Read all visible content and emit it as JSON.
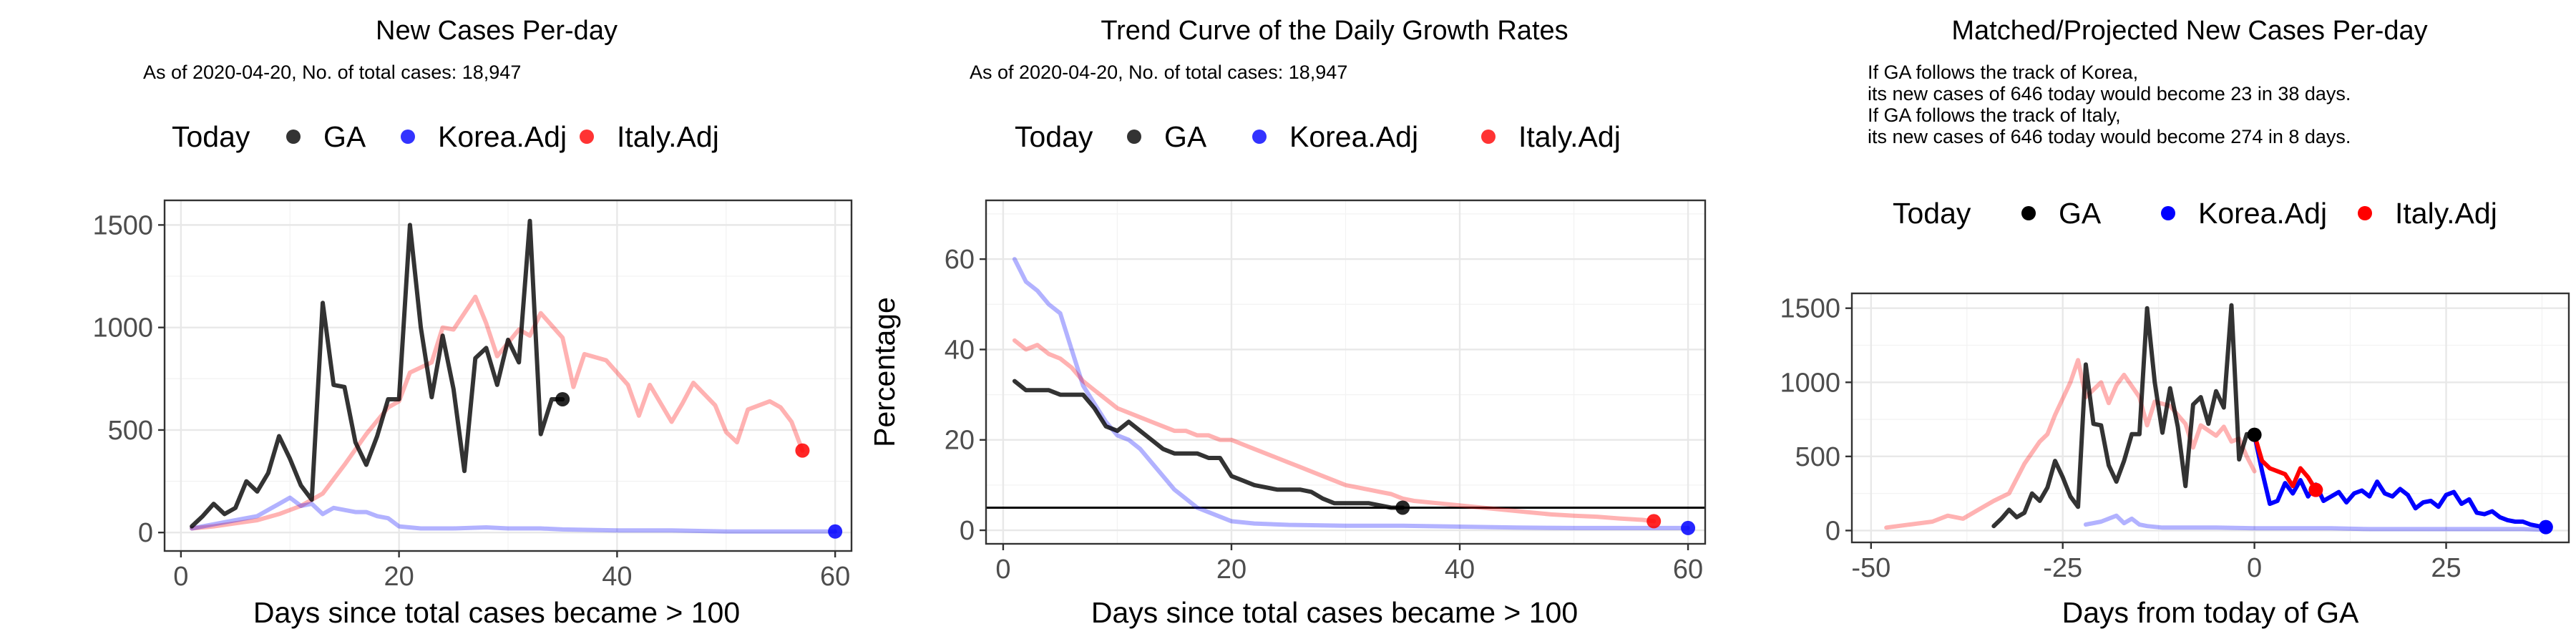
{
  "chart_data": [
    {
      "type": "line",
      "title": "New Cases Per-day",
      "subtitle": "As of 2020-04-20, No. of total cases: 18,947",
      "notes": [],
      "xlabel": "Days since total cases became > 100",
      "ylabel": "",
      "xlim": [
        -1.5,
        61.5
      ],
      "ylim": [
        -90,
        1620
      ],
      "xticks": [
        0,
        20,
        40,
        60
      ],
      "yticks": [
        0,
        500,
        1000,
        1500
      ],
      "grid": true,
      "legend_placement": "top",
      "legend": {
        "title": "Today",
        "entries": [
          "GA",
          "Korea.Adj",
          "Italy.Adj"
        ]
      },
      "series": [
        {
          "name": "Italy.Adj",
          "color": "#ff0000",
          "alpha": 0.3,
          "x": [
            1,
            3,
            5,
            7,
            9,
            11,
            13,
            15,
            17,
            19,
            20,
            21,
            23,
            24,
            25,
            27,
            28,
            29,
            31,
            32,
            33,
            35,
            36,
            37,
            39,
            41,
            42,
            43,
            45,
            46,
            47,
            49,
            50,
            51,
            52,
            54,
            55,
            56,
            57
          ],
          "y": [
            20,
            30,
            45,
            60,
            90,
            130,
            190,
            330,
            480,
            610,
            640,
            780,
            830,
            1000,
            990,
            1150,
            1020,
            860,
            990,
            960,
            1070,
            950,
            710,
            870,
            840,
            720,
            570,
            720,
            540,
            630,
            730,
            620,
            490,
            440,
            600,
            640,
            610,
            540,
            400
          ]
        },
        {
          "name": "Korea.Adj",
          "color": "#0000ff",
          "alpha": 0.3,
          "x": [
            1,
            3,
            5,
            7,
            9,
            10,
            11,
            12,
            13,
            14,
            15,
            16,
            17,
            18,
            19,
            20,
            22,
            25,
            28,
            30,
            33,
            35,
            40,
            45,
            50,
            55,
            60
          ],
          "y": [
            20,
            40,
            60,
            80,
            140,
            170,
            130,
            140,
            90,
            120,
            110,
            100,
            100,
            80,
            70,
            30,
            20,
            20,
            25,
            20,
            20,
            15,
            10,
            10,
            5,
            5,
            5
          ],
          "today": {
            "x": 60,
            "y": 5
          }
        },
        {
          "name": "GA",
          "color": "#000000",
          "alpha": 0.8,
          "x": [
            1,
            2,
            3,
            4,
            5,
            6,
            7,
            8,
            9,
            10,
            11,
            12,
            13,
            14,
            15,
            16,
            17,
            18,
            19,
            20,
            21,
            22,
            23,
            24,
            25,
            26,
            27,
            28,
            29,
            30,
            31,
            32,
            33,
            34,
            35
          ],
          "y": [
            30,
            80,
            140,
            90,
            120,
            250,
            200,
            290,
            470,
            360,
            230,
            160,
            1120,
            720,
            710,
            440,
            330,
            470,
            650,
            650,
            1500,
            1000,
            660,
            960,
            700,
            300,
            850,
            900,
            720,
            940,
            830,
            1520,
            480,
            650,
            650
          ],
          "today": {
            "x": 35,
            "y": 650
          }
        },
        {
          "name": "Italy.Adj",
          "color": "#ff0000",
          "alpha": 1,
          "x": [],
          "y": [],
          "today": {
            "x": 57,
            "y": 400
          }
        }
      ]
    },
    {
      "type": "line",
      "title": "Trend Curve of the Daily Growth Rates",
      "subtitle": "As of 2020-04-20, No. of total cases: 18,947",
      "notes": [],
      "xlabel": "Days since total cases became > 100",
      "ylabel": "Percentage",
      "xlim": [
        -1.5,
        61.5
      ],
      "ylim": [
        -3,
        73
      ],
      "xticks": [
        0,
        20,
        40,
        60
      ],
      "yticks": [
        0,
        20,
        40,
        60
      ],
      "hline": 5,
      "grid": true,
      "legend_placement": "top",
      "legend": {
        "title": "Today",
        "entries": [
          "GA",
          "Korea.Adj",
          "Italy.Adj"
        ]
      },
      "series": [
        {
          "name": "Korea.Adj",
          "color": "#0000ff",
          "alpha": 0.3,
          "x": [
            1,
            2,
            3,
            4,
            5,
            6,
            7,
            8,
            9,
            10,
            11,
            12,
            13,
            14,
            15,
            16,
            17,
            18,
            20,
            22,
            25,
            30,
            35,
            40,
            45,
            50,
            55,
            60
          ],
          "y": [
            60,
            55,
            53,
            50,
            48,
            40,
            32,
            28,
            24,
            21,
            20,
            18,
            15,
            12,
            9,
            7,
            5,
            4,
            2,
            1.5,
            1.2,
            1,
            1,
            0.8,
            0.6,
            0.5,
            0.5,
            0.5
          ],
          "today": {
            "x": 60,
            "y": 0.5
          }
        },
        {
          "name": "Italy.Adj",
          "color": "#ff0000",
          "alpha": 0.3,
          "x": [
            1,
            2,
            3,
            4,
            5,
            6,
            7,
            8,
            9,
            10,
            11,
            12,
            13,
            14,
            15,
            16,
            17,
            18,
            19,
            20,
            21,
            22,
            23,
            24,
            25,
            26,
            27,
            28,
            29,
            30,
            31,
            32,
            33,
            34,
            35,
            36,
            38,
            40,
            42,
            44,
            46,
            48,
            50,
            52,
            54,
            56,
            57
          ],
          "y": [
            42,
            40,
            41,
            39,
            38,
            36,
            33,
            31,
            29,
            27,
            26,
            25,
            24,
            23,
            22,
            22,
            21,
            21,
            20,
            20,
            19,
            18,
            17,
            16,
            15,
            14,
            13,
            12,
            11,
            10,
            9.5,
            9,
            8.5,
            8,
            7,
            6.5,
            6,
            5.5,
            5,
            4.5,
            4,
            3.5,
            3.2,
            3,
            2.6,
            2.3,
            2
          ],
          "today": {
            "x": 57,
            "y": 2
          }
        },
        {
          "name": "GA",
          "color": "#000000",
          "alpha": 0.8,
          "x": [
            1,
            2,
            3,
            4,
            5,
            6,
            7,
            8,
            9,
            10,
            11,
            12,
            13,
            14,
            15,
            16,
            17,
            18,
            19,
            20,
            21,
            22,
            23,
            24,
            25,
            26,
            27,
            28,
            29,
            30,
            31,
            32,
            33,
            34,
            35
          ],
          "y": [
            33,
            31,
            31,
            31,
            30,
            30,
            30,
            27,
            23,
            22,
            24,
            22,
            20,
            18,
            17,
            17,
            17,
            16,
            16,
            12,
            11,
            10,
            9.5,
            9,
            9,
            9,
            8.5,
            7,
            6,
            6,
            6,
            6,
            5.5,
            5,
            5
          ],
          "today": {
            "x": 35,
            "y": 5
          }
        }
      ]
    },
    {
      "type": "line",
      "title": "Matched/Projected New Cases Per-day",
      "subtitle": "",
      "notes": [
        "If GA follows the track of Korea,",
        "its new cases of 646 today would become 23 in 38 days.",
        "If GA follows the track of Italy,",
        "its new cases of 646 today would become 274 in 8 days."
      ],
      "xlabel": "Days from today of GA",
      "ylabel": "",
      "xlim": [
        -52.5,
        41
      ],
      "ylim": [
        -80,
        1600
      ],
      "xticks": [
        -50,
        -25,
        0,
        25
      ],
      "yticks": [
        0,
        500,
        1000,
        1500
      ],
      "grid": true,
      "legend_placement": "top",
      "legend": {
        "title": "Today",
        "entries": [
          "GA",
          "Korea.Adj",
          "Italy.Adj"
        ]
      },
      "series": [
        {
          "name": "Italy.Adj",
          "color": "#ff0000",
          "alpha": 0.3,
          "x": [
            -48,
            -45,
            -42,
            -40,
            -38,
            -36,
            -34,
            -32,
            -30,
            -28,
            -27,
            -26,
            -24,
            -23,
            -22,
            -20,
            -19,
            -18,
            -17,
            -15,
            -14,
            -13,
            -11,
            -9,
            -8,
            -7,
            -5,
            -4,
            -3,
            -2,
            -1,
            0
          ],
          "y": [
            20,
            40,
            60,
            100,
            80,
            140,
            200,
            250,
            450,
            600,
            650,
            780,
            1000,
            1150,
            900,
            1000,
            860,
            980,
            1050,
            900,
            710,
            870,
            840,
            720,
            560,
            710,
            640,
            700,
            600,
            620,
            500,
            400
          ]
        },
        {
          "name": "Korea.Adj",
          "color": "#0000ff",
          "alpha": 0.3,
          "x": [
            -22,
            -20,
            -18,
            -17,
            -16,
            -15,
            -14,
            -12,
            -10,
            -5,
            0,
            5,
            10,
            15,
            20,
            25,
            30,
            35,
            38
          ],
          "y": [
            40,
            60,
            100,
            50,
            80,
            40,
            30,
            20,
            20,
            20,
            15,
            15,
            15,
            10,
            10,
            10,
            10,
            10,
            5
          ]
        },
        {
          "name": "GA",
          "color": "#000000",
          "alpha": 0.8,
          "x": [
            -34,
            -33,
            -32,
            -31,
            -30,
            -29,
            -28,
            -27,
            -26,
            -25,
            -24,
            -23,
            -22,
            -21,
            -20,
            -19,
            -18,
            -17,
            -16,
            -15,
            -14,
            -13,
            -12,
            -11,
            -10,
            -9,
            -8,
            -7,
            -6,
            -5,
            -4,
            -3,
            -2,
            -1,
            0
          ],
          "y": [
            30,
            80,
            140,
            90,
            120,
            250,
            200,
            290,
            470,
            360,
            230,
            160,
            1120,
            720,
            710,
            440,
            330,
            470,
            650,
            650,
            1500,
            1000,
            660,
            960,
            700,
            300,
            850,
            900,
            720,
            940,
            830,
            1520,
            480,
            650,
            646
          ],
          "today": {
            "x": 0,
            "y": 646
          }
        },
        {
          "name": "Korea.Adj",
          "color": "#0000ff",
          "alpha": 1,
          "x": [
            0,
            1,
            2,
            3,
            4,
            5,
            6,
            7,
            8,
            9,
            10,
            11,
            12,
            13,
            14,
            15,
            16,
            17,
            18,
            19,
            20,
            21,
            22,
            23,
            24,
            25,
            26,
            27,
            28,
            29,
            30,
            31,
            32,
            33,
            34,
            35,
            36,
            37,
            38
          ],
          "y": [
            646,
            400,
            180,
            200,
            320,
            250,
            340,
            230,
            310,
            200,
            230,
            260,
            190,
            250,
            270,
            230,
            330,
            250,
            230,
            280,
            240,
            150,
            190,
            200,
            160,
            240,
            260,
            180,
            210,
            120,
            110,
            130,
            90,
            70,
            60,
            60,
            40,
            30,
            23
          ],
          "today": {
            "x": 38,
            "y": 23
          }
        },
        {
          "name": "Italy.Adj",
          "color": "#ff0000",
          "alpha": 1,
          "x": [
            0,
            1,
            2,
            3,
            4,
            5,
            6,
            7,
            8
          ],
          "y": [
            646,
            470,
            420,
            400,
            380,
            300,
            420,
            360,
            274
          ],
          "today": {
            "x": 8,
            "y": 274
          }
        }
      ]
    }
  ]
}
